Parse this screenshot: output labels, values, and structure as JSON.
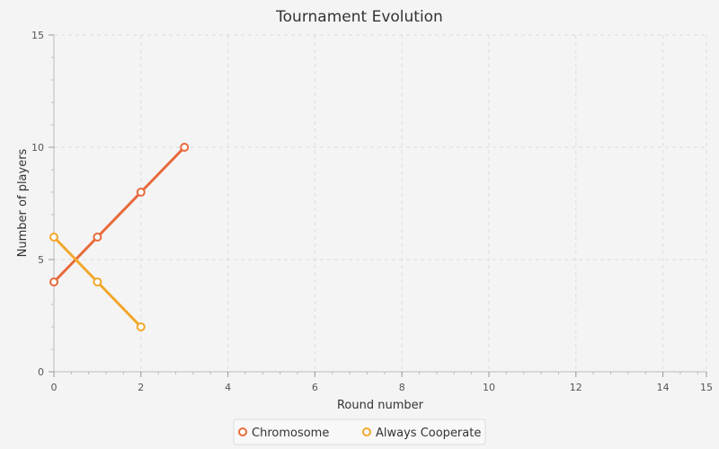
{
  "chart_data": {
    "type": "line",
    "title": "Tournament Evolution",
    "xlabel": "Round number",
    "ylabel": "Number of players",
    "xlim": [
      0,
      15
    ],
    "ylim": [
      0,
      15
    ],
    "x_tick_labels": [
      "0",
      "2",
      "4",
      "6",
      "8",
      "10",
      "12",
      "14",
      "15"
    ],
    "y_tick_labels": [
      "0",
      "5",
      "10",
      "15"
    ],
    "grid": true,
    "legend_position": "bottom-center",
    "series": [
      {
        "name": "Chromosome",
        "color": "#e8693a",
        "x": [
          0,
          1,
          2,
          3
        ],
        "y": [
          4,
          6,
          8,
          10
        ]
      },
      {
        "name": "Always Cooperate",
        "color": "#f2a72b",
        "x": [
          0,
          1,
          2
        ],
        "y": [
          6,
          4,
          2
        ]
      }
    ]
  }
}
